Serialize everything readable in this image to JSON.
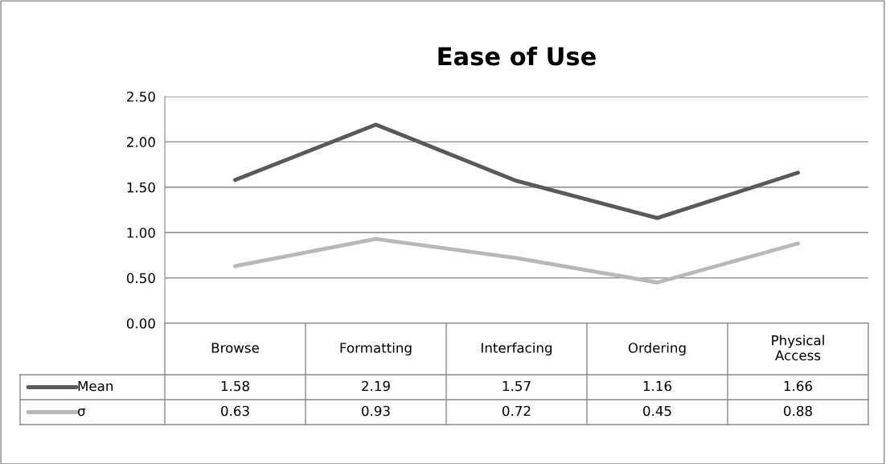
{
  "chart_data": {
    "type": "line",
    "title": "Ease of Use",
    "categories": [
      "Browse",
      "Formatting",
      "Interfacing",
      "Ordering",
      "Physical Access"
    ],
    "series": [
      {
        "name": "Mean",
        "color": "#595959",
        "values": [
          1.58,
          2.19,
          1.57,
          1.16,
          1.66
        ]
      },
      {
        "name": "σ",
        "color": "#b8b8b8",
        "values": [
          0.63,
          0.93,
          0.72,
          0.45,
          0.88
        ]
      }
    ],
    "ylim": [
      0,
      2.5
    ],
    "yticks": [
      {
        "value": 0,
        "label": "0.00"
      },
      {
        "value": 0.5,
        "label": "0.50"
      },
      {
        "value": 1,
        "label": "1.00"
      },
      {
        "value": 1.5,
        "label": "1.50"
      },
      {
        "value": 2,
        "label": "2.00"
      },
      {
        "value": 2.5,
        "label": "2.50"
      }
    ],
    "grid": "y",
    "legend": "bottom left",
    "data_labels": true,
    "marker": "none",
    "line_style": "solid"
  }
}
